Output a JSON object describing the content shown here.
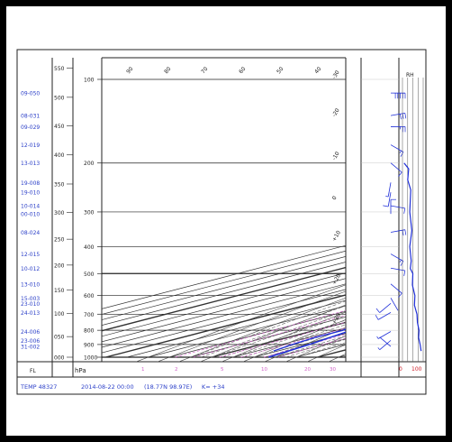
{
  "chart_data": {
    "type": "line",
    "title": "",
    "xlabel": "",
    "ylabel": "hPa",
    "fl_label": "FL",
    "pressure_ticks": [
      "1000",
      "900",
      "800",
      "700",
      "600",
      "500",
      "400",
      "300",
      "200",
      "100"
    ],
    "fl_ticks": [
      "000",
      "050",
      "100",
      "150",
      "200",
      "250",
      "300",
      "350",
      "400",
      "450",
      "500",
      "550"
    ],
    "wind_labels": [
      {
        "p": 112,
        "t": "09-050"
      },
      {
        "p": 135,
        "t": "08-031"
      },
      {
        "p": 148,
        "t": "09-029"
      },
      {
        "p": 172,
        "t": "12-019"
      },
      {
        "p": 200,
        "t": "13-013"
      },
      {
        "p": 235,
        "t": "19-008"
      },
      {
        "p": 255,
        "t": "19-010"
      },
      {
        "p": 285,
        "t": "10-014"
      },
      {
        "p": 305,
        "t": "00-010"
      },
      {
        "p": 355,
        "t": "08-024"
      },
      {
        "p": 425,
        "t": "12-015"
      },
      {
        "p": 478,
        "t": "10-012"
      },
      {
        "p": 545,
        "t": "13-010"
      },
      {
        "p": 612,
        "t": "15-003"
      },
      {
        "p": 640,
        "t": "23-010"
      },
      {
        "p": 690,
        "t": "24-013"
      },
      {
        "p": 808,
        "t": "24-006"
      },
      {
        "p": 870,
        "t": "23-006"
      },
      {
        "p": 915,
        "t": "31-002"
      }
    ],
    "isotherm_labels": [
      "-30",
      "-20",
      "-10",
      "0",
      "+10",
      "+20",
      "+30"
    ],
    "dry_adiabat_labels": [
      "90",
      "80",
      "70",
      "60",
      "50",
      "40"
    ],
    "mixing_ratio_labels": [
      "1",
      "2",
      "5",
      "10",
      "20",
      "30"
    ],
    "rh_title": "RH",
    "rh_ticks": [
      "0",
      "100"
    ],
    "temperature_profile": [
      {
        "p": 100,
        "t": -79
      },
      {
        "p": 120,
        "t": -72
      },
      {
        "p": 150,
        "t": -67
      },
      {
        "p": 200,
        "t": -56
      },
      {
        "p": 250,
        "t": -44
      },
      {
        "p": 300,
        "t": -33
      },
      {
        "p": 350,
        "t": -24
      },
      {
        "p": 400,
        "t": -16
      },
      {
        "p": 500,
        "t": -5
      },
      {
        "p": 600,
        "t": 3
      },
      {
        "p": 700,
        "t": 10
      },
      {
        "p": 800,
        "t": 17
      },
      {
        "p": 850,
        "t": 20
      },
      {
        "p": 900,
        "t": 23
      },
      {
        "p": 1000,
        "t": 27
      }
    ],
    "dewpoint_profile": [
      {
        "p": 250,
        "t": -62
      },
      {
        "p": 262,
        "t": -65
      },
      {
        "p": 275,
        "t": -60
      },
      {
        "p": 290,
        "t": -68
      },
      {
        "p": 320,
        "t": -54
      },
      {
        "p": 345,
        "t": -56
      },
      {
        "p": 360,
        "t": -52
      },
      {
        "p": 380,
        "t": -46
      },
      {
        "p": 420,
        "t": -38
      },
      {
        "p": 455,
        "t": -30
      },
      {
        "p": 470,
        "t": -24
      },
      {
        "p": 480,
        "t": -14
      },
      {
        "p": 500,
        "t": -12
      },
      {
        "p": 520,
        "t": -9
      },
      {
        "p": 560,
        "t": -7
      },
      {
        "p": 600,
        "t": -5
      },
      {
        "p": 650,
        "t": 0
      },
      {
        "p": 700,
        "t": 5
      },
      {
        "p": 750,
        "t": 8
      },
      {
        "p": 800,
        "t": 13
      },
      {
        "p": 850,
        "t": 13
      },
      {
        "p": 900,
        "t": 15
      },
      {
        "p": 950,
        "t": 18
      }
    ],
    "rh_profile": [
      {
        "p": 200,
        "rh": 8
      },
      {
        "p": 210,
        "rh": 30
      },
      {
        "p": 230,
        "rh": 25
      },
      {
        "p": 250,
        "rh": 40
      },
      {
        "p": 300,
        "rh": 35
      },
      {
        "p": 350,
        "rh": 45
      },
      {
        "p": 400,
        "rh": 35
      },
      {
        "p": 450,
        "rh": 42
      },
      {
        "p": 480,
        "rh": 38
      },
      {
        "p": 500,
        "rh": 50
      },
      {
        "p": 550,
        "rh": 48
      },
      {
        "p": 600,
        "rh": 60
      },
      {
        "p": 650,
        "rh": 58
      },
      {
        "p": 700,
        "rh": 70
      },
      {
        "p": 750,
        "rh": 72
      },
      {
        "p": 800,
        "rh": 80
      },
      {
        "p": 850,
        "rh": 78
      },
      {
        "p": 900,
        "rh": 85
      },
      {
        "p": 950,
        "rh": 90
      }
    ],
    "wind_barbs": [
      {
        "p": 112,
        "d": 90,
        "s": 50
      },
      {
        "p": 135,
        "d": 80,
        "s": 31
      },
      {
        "p": 148,
        "d": 90,
        "s": 29
      },
      {
        "p": 172,
        "d": 120,
        "s": 19
      },
      {
        "p": 200,
        "d": 130,
        "s": 13
      },
      {
        "p": 235,
        "d": 190,
        "s": 8
      },
      {
        "p": 255,
        "d": 190,
        "s": 10
      },
      {
        "p": 285,
        "d": 100,
        "s": 14
      },
      {
        "p": 305,
        "d": 0,
        "s": 10
      },
      {
        "p": 355,
        "d": 80,
        "s": 24
      },
      {
        "p": 425,
        "d": 120,
        "s": 15
      },
      {
        "p": 478,
        "d": 100,
        "s": 12
      },
      {
        "p": 545,
        "d": 130,
        "s": 10
      },
      {
        "p": 612,
        "d": 150,
        "s": 3
      },
      {
        "p": 640,
        "d": 230,
        "s": 10
      },
      {
        "p": 690,
        "d": 240,
        "s": 13
      },
      {
        "p": 808,
        "d": 240,
        "s": 6
      },
      {
        "p": 870,
        "d": 230,
        "s": 6
      },
      {
        "p": 915,
        "d": 310,
        "s": 2
      }
    ]
  },
  "footer": {
    "station": "TEMP  48327",
    "datetime": "2014-08-22 00:00",
    "location": "(18.77N 98.97E)",
    "extra": "K= +34"
  },
  "colors": {
    "profile": "#1f2fd8",
    "labels": "#2b3fc8",
    "mixing": "#d064c8",
    "grid": "#3a3a3a",
    "border": "#222222",
    "frame": "#000000"
  }
}
